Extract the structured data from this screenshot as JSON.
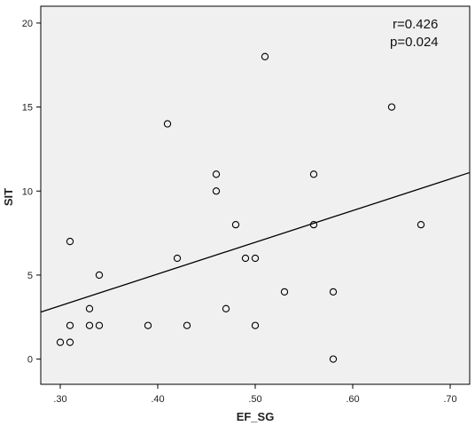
{
  "chart_data": {
    "type": "scatter",
    "xlabel": "EF_SG",
    "ylabel": "SIT",
    "xlim": [
      0.28,
      0.72
    ],
    "ylim": [
      -1.5,
      21
    ],
    "x_ticks": [
      0.3,
      0.4,
      0.5,
      0.6,
      0.7
    ],
    "x_tick_labels": [
      ".30",
      ".40",
      ".50",
      ".60",
      ".70"
    ],
    "y_ticks": [
      0,
      5,
      10,
      15,
      20
    ],
    "y_tick_labels": [
      "0",
      "5",
      "10",
      "15",
      "20"
    ],
    "grid": false,
    "background_color": "#f0f0f0",
    "point_style": "hollow-circle",
    "points": [
      {
        "x": 0.3,
        "y": 1
      },
      {
        "x": 0.31,
        "y": 1
      },
      {
        "x": 0.31,
        "y": 2
      },
      {
        "x": 0.31,
        "y": 7
      },
      {
        "x": 0.33,
        "y": 2
      },
      {
        "x": 0.33,
        "y": 3
      },
      {
        "x": 0.34,
        "y": 2
      },
      {
        "x": 0.34,
        "y": 5
      },
      {
        "x": 0.39,
        "y": 2
      },
      {
        "x": 0.41,
        "y": 14
      },
      {
        "x": 0.42,
        "y": 6
      },
      {
        "x": 0.43,
        "y": 2
      },
      {
        "x": 0.46,
        "y": 11
      },
      {
        "x": 0.46,
        "y": 10
      },
      {
        "x": 0.47,
        "y": 3
      },
      {
        "x": 0.48,
        "y": 8
      },
      {
        "x": 0.49,
        "y": 6
      },
      {
        "x": 0.5,
        "y": 6
      },
      {
        "x": 0.5,
        "y": 2
      },
      {
        "x": 0.51,
        "y": 18
      },
      {
        "x": 0.53,
        "y": 4
      },
      {
        "x": 0.56,
        "y": 11
      },
      {
        "x": 0.56,
        "y": 8
      },
      {
        "x": 0.58,
        "y": 4
      },
      {
        "x": 0.58,
        "y": 0
      },
      {
        "x": 0.64,
        "y": 15
      },
      {
        "x": 0.67,
        "y": 8
      }
    ],
    "fit_line": {
      "x": [
        0.28,
        0.72
      ],
      "y": [
        2.8,
        11.1
      ]
    },
    "annotations": [
      "r=0.426",
      "p=0.024"
    ]
  }
}
